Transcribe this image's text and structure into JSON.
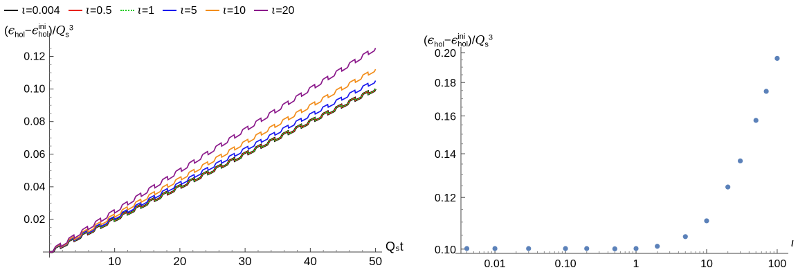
{
  "chart_data": [
    {
      "type": "line",
      "ylabel_parts": {
        "open": "(",
        "eps": "ϵ",
        "sub1": "hol",
        "minus": "−",
        "eps2": "ϵ",
        "sup2": "ini",
        "sub2": "hol",
        "close": ")/",
        "q": "Q",
        "qsub": "s",
        "qsup": "3"
      },
      "xlabel": "Qₛt",
      "xlim": [
        -1,
        51
      ],
      "ylim": [
        0,
        0.13
      ],
      "xticks": [
        "10",
        "20",
        "30",
        "40",
        "50"
      ],
      "xtick_values": [
        10,
        20,
        30,
        40,
        50
      ],
      "yticks": [
        "0.02",
        "0.04",
        "0.06",
        "0.08",
        "0.10",
        "0.12"
      ],
      "ytick_values": [
        0.02,
        0.04,
        0.06,
        0.08,
        0.1,
        0.12
      ],
      "step_period": 2.05,
      "series": [
        {
          "name": "ι=0.004",
          "color": "#000000",
          "style": "solid",
          "start": [
            0,
            0
          ],
          "end": [
            50,
            0.1
          ]
        },
        {
          "name": "ι=0.5",
          "color": "#e8221c",
          "style": "solid",
          "start": [
            0,
            0
          ],
          "end": [
            50,
            0.1
          ]
        },
        {
          "name": "ι=1",
          "color": "#22cc22",
          "style": "dotted",
          "start": [
            0,
            0
          ],
          "end": [
            50,
            0.1
          ]
        },
        {
          "name": "ι=5",
          "color": "#1a1aee",
          "style": "solid",
          "start": [
            0,
            0
          ],
          "end": [
            50,
            0.105
          ]
        },
        {
          "name": "ι=10",
          "color": "#f28e1c",
          "style": "solid",
          "start": [
            0,
            0
          ],
          "end": [
            50,
            0.112
          ]
        },
        {
          "name": "ι=20",
          "color": "#8b1a8b",
          "style": "solid",
          "start": [
            0,
            0
          ],
          "end": [
            50,
            0.125
          ]
        }
      ]
    },
    {
      "type": "scatter",
      "ylabel_parts": {
        "open": "(",
        "eps": "ϵ",
        "sub1": "hol",
        "minus": "−",
        "eps2": "ϵ",
        "sup2": "ini",
        "sub2": "hol",
        "close": ")/",
        "q": "Q",
        "qsub": "s",
        "qsup": "3"
      },
      "xlabel": "ι",
      "xscale": "log",
      "yscale": "log",
      "xlim": [
        0.0033,
        120
      ],
      "ylim": [
        0.0985,
        0.202
      ],
      "xticks": [
        "0.01",
        "0.10",
        "1",
        "10",
        "100"
      ],
      "xtick_values": [
        0.01,
        0.1,
        1,
        10,
        100
      ],
      "yticks": [
        "0.10",
        "0.12",
        "0.14",
        "0.16",
        "0.18",
        "0.20"
      ],
      "ytick_values": [
        0.1,
        0.12,
        0.14,
        0.16,
        0.18,
        0.2
      ],
      "marker_color": "#5b81b9",
      "x": [
        0.004,
        0.01,
        0.03,
        0.1,
        0.2,
        0.5,
        1,
        2,
        5,
        10,
        20,
        30,
        50,
        70,
        100
      ],
      "y": [
        0.1002,
        0.1002,
        0.1002,
        0.1002,
        0.1002,
        0.1001,
        0.1002,
        0.101,
        0.1045,
        0.1105,
        0.1245,
        0.1365,
        0.1575,
        0.1745,
        0.196
      ]
    }
  ]
}
